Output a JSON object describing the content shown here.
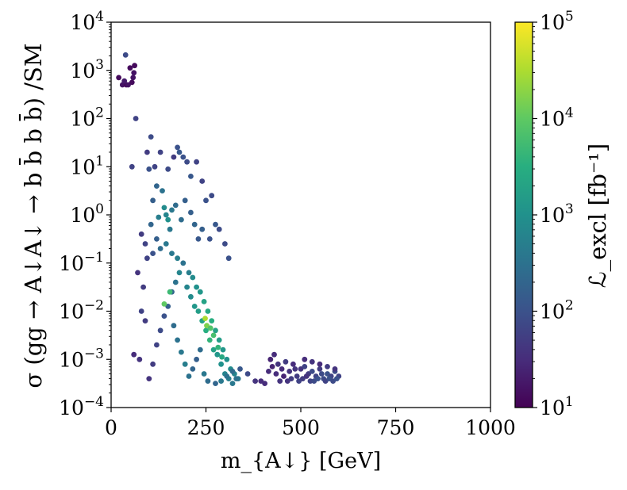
{
  "chart_data": {
    "type": "scatter",
    "title": "",
    "xlabel": "m_{A↓} [GeV]",
    "ylabel": "σ (gg → A↓A↓ → b b̄ b b̄) /SM",
    "xlim": [
      0,
      1000
    ],
    "ylim_log10": [
      -4,
      4
    ],
    "xscale": "linear",
    "yscale": "log",
    "xticks": [
      0,
      250,
      500,
      750,
      1000
    ],
    "xtick_labels": [
      "0",
      "250",
      "500",
      "750",
      "1000"
    ],
    "yticks_log10": [
      -4,
      -3,
      -2,
      -1,
      0,
      1,
      2,
      3,
      4
    ],
    "ytick_labels": [
      {
        "base": "10",
        "exp": "−4"
      },
      {
        "base": "10",
        "exp": "−3"
      },
      {
        "base": "10",
        "exp": "−2"
      },
      {
        "base": "10",
        "exp": "−1"
      },
      {
        "base": "10",
        "exp": "0"
      },
      {
        "base": "10",
        "exp": "1"
      },
      {
        "base": "10",
        "exp": "2"
      },
      {
        "base": "10",
        "exp": "3"
      },
      {
        "base": "10",
        "exp": "4"
      }
    ],
    "colorbar": {
      "label": "ℒ_excl [fb⁻¹]",
      "scale": "log",
      "range_log10": [
        1,
        5
      ],
      "colormap": "viridis",
      "ticks_log10": [
        1,
        2,
        3,
        4,
        5
      ],
      "tick_labels": [
        {
          "base": "10",
          "exp": "1"
        },
        {
          "base": "10",
          "exp": "2"
        },
        {
          "base": "10",
          "exp": "3"
        },
        {
          "base": "10",
          "exp": "4"
        },
        {
          "base": "10",
          "exp": "5"
        }
      ]
    },
    "point_columns": [
      "m_A_GeV",
      "log10_sigma_over_SM",
      "log10_L_excl"
    ],
    "points": [
      [
        20,
        2.85,
        1.1
      ],
      [
        30,
        2.7,
        1.2
      ],
      [
        40,
        2.7,
        1.1
      ],
      [
        45,
        2.7,
        1.2
      ],
      [
        55,
        2.75,
        1.1
      ],
      [
        60,
        2.95,
        1.2
      ],
      [
        62,
        3.1,
        1.1
      ],
      [
        50,
        3.05,
        1.1
      ],
      [
        38,
        3.32,
        1.9
      ],
      [
        58,
        2.85,
        1.2
      ],
      [
        35,
        2.78,
        1.3
      ],
      [
        65,
        2.0,
        1.8
      ],
      [
        105,
        1.62,
        1.9
      ],
      [
        95,
        1.3,
        1.7
      ],
      [
        175,
        1.4,
        2.0
      ],
      [
        180,
        1.3,
        2.1
      ],
      [
        190,
        1.2,
        2.0
      ],
      [
        130,
        1.3,
        1.8
      ],
      [
        200,
        1.1,
        1.9
      ],
      [
        165,
        1.2,
        1.7
      ],
      [
        210,
        0.8,
        2.1
      ],
      [
        225,
        1.1,
        1.8
      ],
      [
        115,
        1.0,
        1.8
      ],
      [
        100,
        0.95,
        2.0
      ],
      [
        55,
        1.0,
        1.8
      ],
      [
        150,
        0.95,
        1.9
      ],
      [
        240,
        0.7,
        1.8
      ],
      [
        250,
        0.3,
        2.0
      ],
      [
        265,
        0.4,
        1.9
      ],
      [
        120,
        0.6,
        2.3
      ],
      [
        135,
        0.5,
        2.5
      ],
      [
        145,
        0.0,
        2.8
      ],
      [
        160,
        0.1,
        2.6
      ],
      [
        170,
        0.2,
        2.4
      ],
      [
        110,
        0.3,
        2.2
      ],
      [
        125,
        -0.05,
        2.7
      ],
      [
        140,
        0.15,
        2.9
      ],
      [
        150,
        -0.1,
        3.0
      ],
      [
        155,
        -0.3,
        2.6
      ],
      [
        105,
        -0.2,
        2.3
      ],
      [
        185,
        -0.1,
        2.4
      ],
      [
        195,
        0.3,
        2.2
      ],
      [
        210,
        0.05,
        2.2
      ],
      [
        220,
        -0.2,
        2.3
      ],
      [
        230,
        -0.5,
        2.1
      ],
      [
        240,
        -0.3,
        2.2
      ],
      [
        260,
        -0.5,
        2.0
      ],
      [
        275,
        -0.2,
        2.1
      ],
      [
        285,
        -0.3,
        1.9
      ],
      [
        300,
        -0.6,
        1.9
      ],
      [
        310,
        -0.9,
        2.0
      ],
      [
        90,
        -0.6,
        1.8
      ],
      [
        110,
        -0.8,
        2.0
      ],
      [
        130,
        -0.7,
        2.4
      ],
      [
        120,
        -0.5,
        2.2
      ],
      [
        145,
        -0.6,
        2.6
      ],
      [
        160,
        -0.8,
        2.6
      ],
      [
        175,
        -0.9,
        2.7
      ],
      [
        190,
        -1.0,
        2.5
      ],
      [
        205,
        -1.2,
        2.7
      ],
      [
        215,
        -1.3,
        2.9
      ],
      [
        225,
        -1.5,
        3.0
      ],
      [
        235,
        -1.6,
        3.1
      ],
      [
        245,
        -1.8,
        3.3
      ],
      [
        255,
        -2.0,
        3.4
      ],
      [
        265,
        -2.2,
        3.5
      ],
      [
        275,
        -2.4,
        3.3
      ],
      [
        285,
        -2.6,
        3.2
      ],
      [
        295,
        -2.8,
        3.1
      ],
      [
        305,
        -3.0,
        3.0
      ],
      [
        315,
        -3.2,
        2.9
      ],
      [
        325,
        -3.3,
        2.8
      ],
      [
        335,
        -3.4,
        2.6
      ],
      [
        200,
        -1.5,
        2.8
      ],
      [
        210,
        -1.7,
        2.9
      ],
      [
        220,
        -1.9,
        3.1
      ],
      [
        230,
        -2.0,
        3.2
      ],
      [
        240,
        -2.2,
        3.3
      ],
      [
        250,
        -2.4,
        3.5
      ],
      [
        260,
        -2.6,
        3.6
      ],
      [
        270,
        -2.8,
        3.3
      ],
      [
        280,
        -2.9,
        3.1
      ],
      [
        290,
        -3.1,
        3.0
      ],
      [
        300,
        -3.3,
        2.8
      ],
      [
        310,
        -3.4,
        2.7
      ],
      [
        320,
        -3.5,
        2.6
      ],
      [
        330,
        -3.4,
        2.5
      ],
      [
        180,
        -1.2,
        2.8
      ],
      [
        170,
        -1.4,
        2.5
      ],
      [
        160,
        -1.6,
        2.3
      ],
      [
        150,
        -1.9,
        2.2
      ],
      [
        140,
        -2.1,
        2.0
      ],
      [
        130,
        -2.4,
        1.9
      ],
      [
        120,
        -2.7,
        1.8
      ],
      [
        110,
        -3.1,
        1.7
      ],
      [
        100,
        -3.4,
        1.6
      ],
      [
        90,
        -2.2,
        1.7
      ],
      [
        80,
        -2.0,
        1.8
      ],
      [
        70,
        -1.2,
        1.6
      ],
      [
        60,
        -2.9,
        1.5
      ],
      [
        75,
        -3.0,
        1.6
      ],
      [
        85,
        -1.5,
        1.7
      ],
      [
        95,
        -0.9,
        1.8
      ],
      [
        80,
        -0.4,
        1.7
      ],
      [
        140,
        -1.85,
        4.0
      ],
      [
        155,
        -1.6,
        3.7
      ],
      [
        248,
        -2.15,
        4.5
      ],
      [
        252,
        -2.3,
        4.2
      ],
      [
        262,
        -2.35,
        3.9
      ],
      [
        270,
        -2.5,
        3.8
      ],
      [
        282,
        -2.75,
        3.6
      ],
      [
        292,
        -2.95,
        3.4
      ],
      [
        165,
        -2.3,
        2.4
      ],
      [
        175,
        -2.6,
        2.5
      ],
      [
        185,
        -2.85,
        2.6
      ],
      [
        195,
        -3.1,
        2.7
      ],
      [
        205,
        -3.35,
        2.5
      ],
      [
        215,
        -3.2,
        2.3
      ],
      [
        225,
        -3.0,
        2.2
      ],
      [
        235,
        -2.8,
        2.4
      ],
      [
        245,
        -3.3,
        2.6
      ],
      [
        255,
        -3.45,
        2.4
      ],
      [
        275,
        -3.5,
        2.3
      ],
      [
        290,
        -3.45,
        2.6
      ],
      [
        305,
        -3.35,
        2.5
      ],
      [
        320,
        -3.25,
        2.4
      ],
      [
        340,
        -3.2,
        2.1
      ],
      [
        360,
        -3.3,
        1.9
      ],
      [
        380,
        -3.45,
        1.6
      ],
      [
        395,
        -3.45,
        1.5
      ],
      [
        405,
        -3.5,
        1.5
      ],
      [
        420,
        -3.0,
        1.4
      ],
      [
        430,
        -2.9,
        1.5
      ],
      [
        440,
        -3.1,
        1.6
      ],
      [
        450,
        -3.2,
        1.5
      ],
      [
        460,
        -3.05,
        1.7
      ],
      [
        470,
        -3.25,
        1.6
      ],
      [
        480,
        -3.1,
        1.5
      ],
      [
        490,
        -3.35,
        1.7
      ],
      [
        500,
        -3.2,
        1.6
      ],
      [
        510,
        -3.15,
        1.8
      ],
      [
        520,
        -3.3,
        1.7
      ],
      [
        530,
        -3.25,
        1.9
      ],
      [
        540,
        -3.35,
        1.8
      ],
      [
        550,
        -3.2,
        1.7
      ],
      [
        560,
        -3.4,
        1.9
      ],
      [
        570,
        -3.3,
        2.0
      ],
      [
        580,
        -3.35,
        1.8
      ],
      [
        590,
        -3.25,
        1.9
      ],
      [
        600,
        -3.35,
        1.8
      ],
      [
        435,
        -3.3,
        1.5
      ],
      [
        445,
        -3.45,
        1.6
      ],
      [
        455,
        -3.35,
        1.4
      ],
      [
        465,
        -3.45,
        1.6
      ],
      [
        475,
        -3.4,
        1.7
      ],
      [
        485,
        -3.2,
        1.6
      ],
      [
        495,
        -3.45,
        1.8
      ],
      [
        505,
        -3.4,
        1.7
      ],
      [
        515,
        -3.35,
        1.6
      ],
      [
        525,
        -3.45,
        1.8
      ],
      [
        535,
        -3.45,
        1.9
      ],
      [
        545,
        -3.4,
        2.0
      ],
      [
        555,
        -3.3,
        1.9
      ],
      [
        565,
        -3.45,
        1.8
      ],
      [
        575,
        -3.4,
        2.0
      ],
      [
        585,
        -3.45,
        1.9
      ],
      [
        595,
        -3.4,
        2.0
      ],
      [
        510,
        -3.0,
        1.5
      ],
      [
        530,
        -3.05,
        1.6
      ],
      [
        550,
        -3.1,
        1.5
      ],
      [
        570,
        -3.15,
        1.7
      ],
      [
        590,
        -3.2,
        1.6
      ],
      [
        425,
        -3.15,
        1.4
      ],
      [
        415,
        -3.25,
        1.5
      ]
    ]
  }
}
